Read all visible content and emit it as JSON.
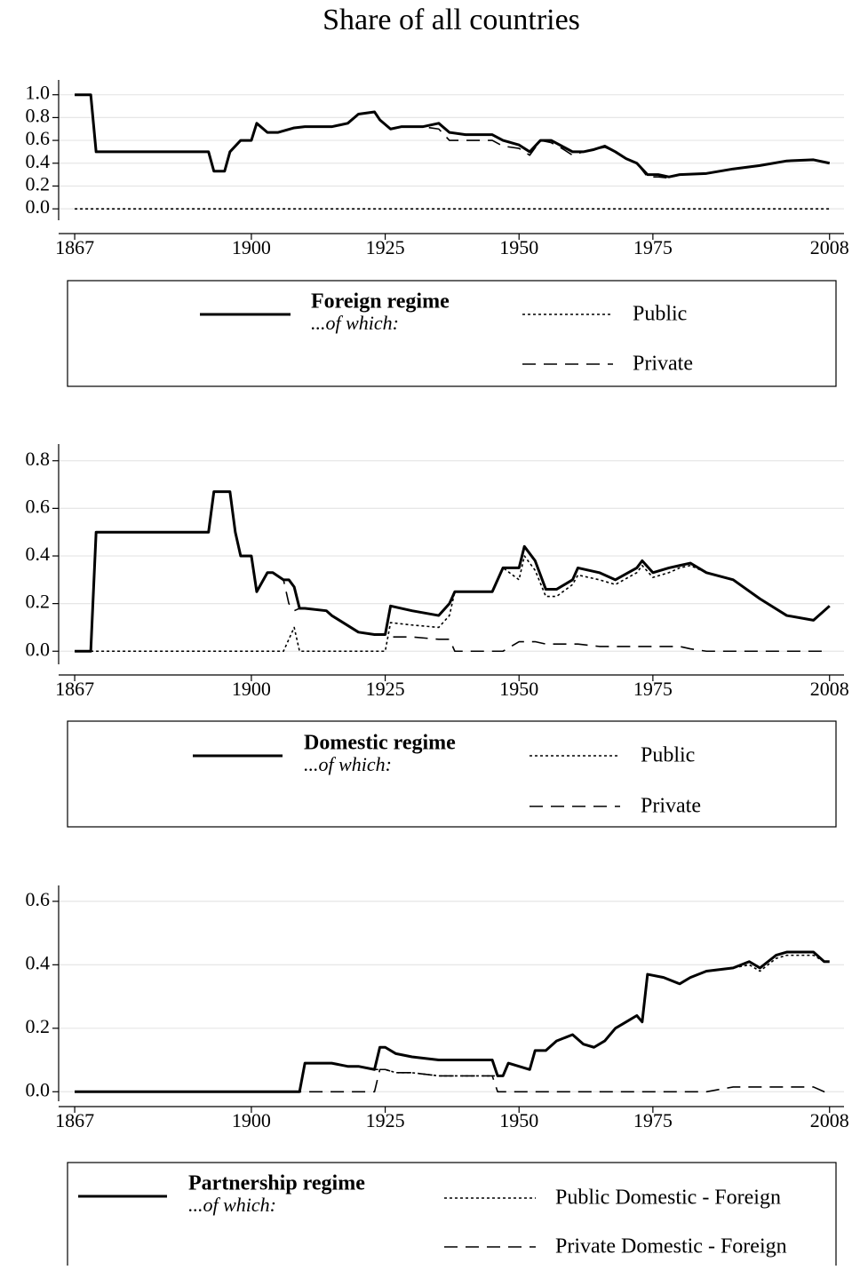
{
  "title": "Share of all countries",
  "chart_data": [
    {
      "type": "line",
      "x": [
        1867,
        1870,
        1871,
        1880,
        1890,
        1892,
        1893,
        1895,
        1896,
        1898,
        1900,
        1901,
        1903,
        1905,
        1908,
        1910,
        1915,
        1918,
        1920,
        1923,
        1924,
        1926,
        1928,
        1932,
        1935,
        1937,
        1940,
        1945,
        1947,
        1950,
        1952,
        1954,
        1956,
        1958,
        1960,
        1962,
        1964,
        1966,
        1968,
        1970,
        1972,
        1974,
        1976,
        1978,
        1980,
        1985,
        1990,
        1995,
        2000,
        2005,
        2008
      ],
      "series": [
        {
          "name": "Foreign regime",
          "color": "#000000",
          "style": "solid",
          "values": [
            1,
            1,
            0.5,
            0.5,
            0.5,
            0.5,
            0.33,
            0.33,
            0.5,
            0.6,
            0.6,
            0.75,
            0.67,
            0.67,
            0.71,
            0.72,
            0.72,
            0.75,
            0.83,
            0.85,
            0.78,
            0.7,
            0.72,
            0.72,
            0.75,
            0.67,
            0.65,
            0.65,
            0.6,
            0.56,
            0.5,
            0.6,
            0.6,
            0.55,
            0.5,
            0.5,
            0.52,
            0.55,
            0.5,
            0.44,
            0.4,
            0.3,
            0.3,
            0.28,
            0.3,
            0.31,
            0.35,
            0.38,
            0.42,
            0.43,
            0.4
          ]
        },
        {
          "name": "Public",
          "color": "#000000",
          "style": "dotted",
          "values": [
            0,
            0,
            0,
            0,
            0,
            0,
            0,
            0,
            0,
            0,
            0,
            0,
            0,
            0,
            0,
            0,
            0,
            0,
            0,
            0,
            0,
            0,
            0,
            0,
            0,
            0,
            0,
            0,
            0,
            0,
            0,
            0,
            0,
            0,
            0,
            0,
            0,
            0,
            0,
            0,
            0,
            0,
            0,
            0,
            0,
            0,
            0,
            0,
            0,
            0,
            0
          ]
        },
        {
          "name": "Private",
          "color": "#000000",
          "style": "dashed",
          "values": [
            1,
            1,
            0.5,
            0.5,
            0.5,
            0.5,
            0.33,
            0.33,
            0.5,
            0.6,
            0.6,
            0.75,
            0.67,
            0.67,
            0.71,
            0.72,
            0.72,
            0.75,
            0.83,
            0.85,
            0.78,
            0.7,
            0.72,
            0.72,
            0.7,
            0.6,
            0.6,
            0.6,
            0.55,
            0.53,
            0.47,
            0.6,
            0.58,
            0.53,
            0.47,
            0.5,
            0.52,
            0.54,
            0.5,
            0.44,
            0.4,
            0.28,
            0.28,
            0.27,
            0.3,
            0.31,
            0.35,
            0.38,
            0.42,
            0.43,
            0.4
          ]
        }
      ],
      "legend_note": "...of which:",
      "xlim": [
        1864,
        2010.7
      ],
      "xticks": [
        1867,
        1900,
        1925,
        1950,
        1975,
        2008
      ],
      "ylim": [
        -0.1,
        1.13
      ],
      "yticks": [
        {
          "value": 0,
          "label": "0.0"
        },
        0.2,
        0.4,
        0.6,
        0.8,
        {
          "value": 1,
          "label": "1.0"
        }
      ],
      "grid": true
    },
    {
      "type": "line",
      "x": [
        1867,
        1870,
        1871,
        1880,
        1890,
        1892,
        1893,
        1896,
        1897,
        1898,
        1900,
        1901,
        1903,
        1904,
        1906,
        1907,
        1908,
        1909,
        1910,
        1914,
        1915,
        1920,
        1923,
        1924,
        1925,
        1926,
        1930,
        1935,
        1937,
        1938,
        1945,
        1947,
        1950,
        1951,
        1953,
        1955,
        1957,
        1960,
        1961,
        1965,
        1968,
        1972,
        1973,
        1975,
        1978,
        1980,
        1982,
        1985,
        1990,
        1995,
        2000,
        2005,
        2008
      ],
      "series": [
        {
          "name": "Domestic regime",
          "color": "#000000",
          "style": "solid",
          "values": [
            0,
            0,
            0.5,
            0.5,
            0.5,
            0.5,
            0.67,
            0.67,
            0.5,
            0.4,
            0.4,
            0.25,
            0.33,
            0.33,
            0.3,
            0.3,
            0.27,
            0.18,
            0.18,
            0.17,
            0.15,
            0.08,
            0.07,
            0.07,
            0.07,
            0.19,
            0.17,
            0.15,
            0.2,
            0.25,
            0.25,
            0.35,
            0.35,
            0.44,
            0.38,
            0.26,
            0.26,
            0.3,
            0.35,
            0.33,
            0.3,
            0.35,
            0.38,
            0.33,
            0.35,
            0.36,
            0.37,
            0.33,
            0.3,
            0.22,
            0.15,
            0.13,
            0.19
          ]
        },
        {
          "name": "Public",
          "color": "#000000",
          "style": "dotted",
          "values": [
            0,
            0,
            0,
            0,
            0,
            0,
            0,
            0,
            0,
            0,
            0,
            0,
            0,
            0,
            0,
            0.05,
            0.1,
            0,
            0,
            0,
            0,
            0,
            0,
            0,
            0,
            0.12,
            0.11,
            0.1,
            0.15,
            0.25,
            0.25,
            0.35,
            0.3,
            0.4,
            0.34,
            0.23,
            0.23,
            0.28,
            0.32,
            0.3,
            0.28,
            0.33,
            0.36,
            0.31,
            0.33,
            0.35,
            0.36,
            0.33,
            0.3,
            0.22,
            0.15,
            0.13,
            0.19
          ]
        },
        {
          "name": "Private",
          "color": "#000000",
          "style": "dashed",
          "values": [
            0,
            0,
            0.5,
            0.5,
            0.5,
            0.5,
            0.67,
            0.67,
            0.5,
            0.4,
            0.4,
            0.25,
            0.33,
            0.33,
            0.3,
            0.2,
            0.17,
            0.18,
            0.18,
            0.17,
            0.15,
            0.08,
            0.07,
            0.07,
            0.07,
            0.06,
            0.06,
            0.05,
            0.05,
            0,
            0,
            0,
            0.04,
            0.04,
            0.04,
            0.03,
            0.03,
            0.03,
            0.03,
            0.02,
            0.02,
            0.02,
            0.02,
            0.02,
            0.02,
            0.02,
            0.01,
            0,
            0,
            0,
            0,
            0,
            0
          ]
        }
      ],
      "legend_note": "...of which:",
      "xlim": [
        1864,
        2010.7
      ],
      "xticks": [
        1867,
        1900,
        1925,
        1950,
        1975,
        2008
      ],
      "ylim": [
        -0.055,
        0.87
      ],
      "yticks": [
        {
          "value": 0,
          "label": "0.0"
        },
        0.2,
        0.4,
        0.6,
        0.8
      ],
      "grid": true
    },
    {
      "type": "line",
      "x": [
        1867,
        1900,
        1909,
        1910,
        1915,
        1918,
        1920,
        1923,
        1924,
        1925,
        1927,
        1930,
        1935,
        1940,
        1945,
        1946,
        1947,
        1948,
        1950,
        1952,
        1953,
        1955,
        1957,
        1960,
        1962,
        1964,
        1966,
        1968,
        1970,
        1972,
        1973,
        1974,
        1977,
        1980,
        1982,
        1985,
        1990,
        1993,
        1995,
        1998,
        2000,
        2005,
        2007,
        2008
      ],
      "series": [
        {
          "name": "Partnership regime",
          "color": "#000000",
          "style": "solid",
          "values": [
            0,
            0,
            0,
            0.09,
            0.09,
            0.08,
            0.08,
            0.07,
            0.14,
            0.14,
            0.12,
            0.11,
            0.1,
            0.1,
            0.1,
            0.05,
            0.05,
            0.09,
            0.08,
            0.07,
            0.13,
            0.13,
            0.16,
            0.18,
            0.15,
            0.14,
            0.16,
            0.2,
            0.22,
            0.24,
            0.22,
            0.37,
            0.36,
            0.34,
            0.36,
            0.38,
            0.39,
            0.41,
            0.39,
            0.43,
            0.44,
            0.44,
            0.41,
            0.41
          ]
        },
        {
          "name": "Public Domestic - Foreign",
          "color": "#000000",
          "style": "dotted",
          "values": [
            0,
            0,
            0,
            0.09,
            0.09,
            0.08,
            0.08,
            0.07,
            0.07,
            0.07,
            0.06,
            0.06,
            0.05,
            0.05,
            0.05,
            0.05,
            0.05,
            0.09,
            0.08,
            0.07,
            0.13,
            0.13,
            0.16,
            0.18,
            0.15,
            0.14,
            0.16,
            0.2,
            0.22,
            0.24,
            0.22,
            0.37,
            0.36,
            0.34,
            0.36,
            0.38,
            0.39,
            0.4,
            0.38,
            0.42,
            0.43,
            0.43,
            0.41,
            0.41
          ]
        },
        {
          "name": "Private Domestic - Foreign",
          "color": "#000000",
          "style": "dashed",
          "values": [
            0,
            0,
            0,
            0,
            0,
            0,
            0,
            0,
            0.07,
            0.07,
            0.06,
            0.06,
            0.05,
            0.05,
            0.05,
            0,
            0,
            0,
            0,
            0,
            0,
            0,
            0,
            0,
            0,
            0,
            0,
            0,
            0,
            0,
            0,
            0,
            0,
            0,
            0,
            0,
            0.015,
            0.015,
            0.015,
            0.015,
            0.015,
            0.015,
            0,
            0
          ]
        }
      ],
      "legend_note": "...of which:",
      "xlim": [
        1864,
        2010.7
      ],
      "xticks": [
        1867,
        1900,
        1925,
        1950,
        1975,
        2008
      ],
      "ylim": [
        -0.03,
        0.65
      ],
      "yticks": [
        {
          "value": 0,
          "label": "0.0"
        },
        0.2,
        0.4,
        0.6
      ],
      "grid": true
    }
  ]
}
